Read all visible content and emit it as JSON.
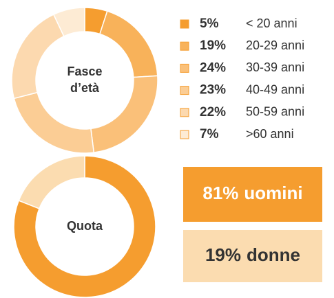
{
  "chart_data": [
    {
      "type": "donut",
      "center_label": [
        "Fasce",
        "d’età"
      ],
      "categories": [
        "< 20 anni",
        "20-29 anni",
        "30-39 anni",
        "40-49 anni",
        "50-59 anni",
        ">60 anni"
      ],
      "values": [
        5,
        19,
        24,
        23,
        22,
        7
      ],
      "value_labels": [
        "5%",
        "19%",
        "24%",
        "23%",
        "22%",
        "7%"
      ],
      "colors": [
        "#f59d2f",
        "#f8b25a",
        "#fac079",
        "#fbcd95",
        "#fcd9af",
        "#fdebd4"
      ],
      "legend": "right"
    },
    {
      "type": "donut",
      "center_label": [
        "Quota"
      ],
      "categories": [
        "uomini",
        "donne"
      ],
      "values": [
        81,
        19
      ],
      "value_labels": [
        "81%",
        "19%"
      ],
      "colors": [
        "#f59d2f",
        "#fbdcb0"
      ],
      "text_colors": [
        "#ffffff",
        "#333333"
      ],
      "legend": "boxes"
    }
  ]
}
